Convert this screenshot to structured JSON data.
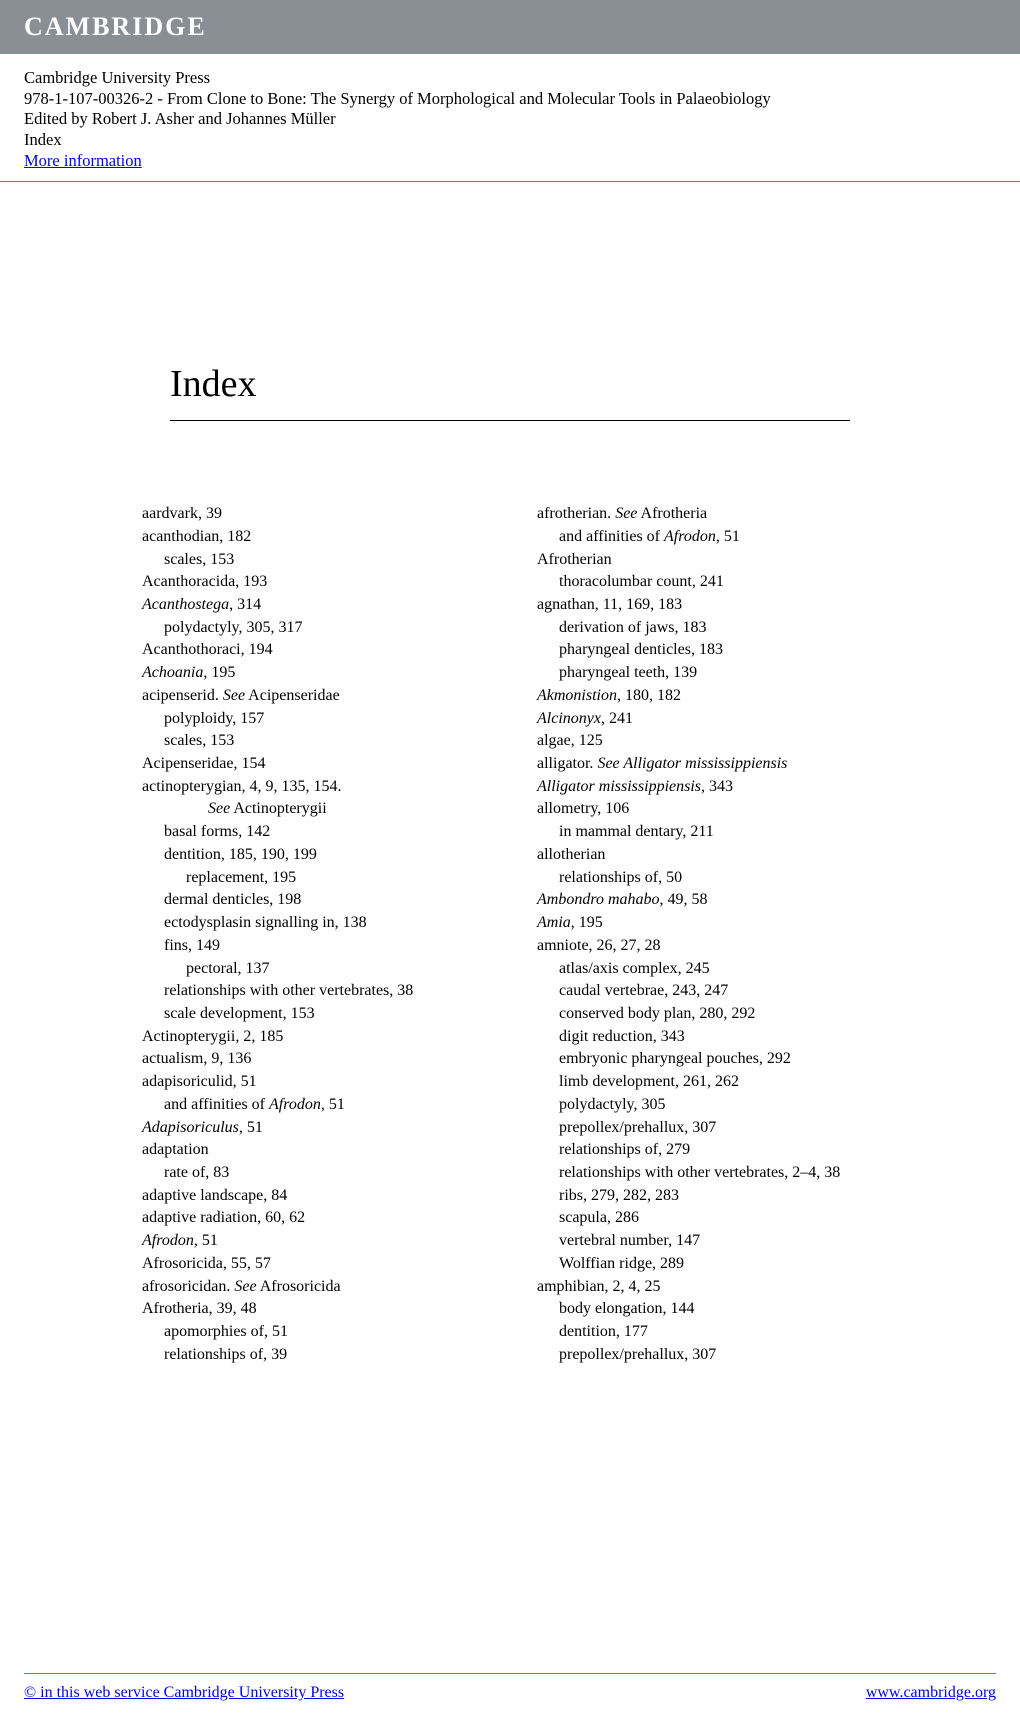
{
  "header": {
    "publisher_logo": "CAMBRIDGE"
  },
  "meta": {
    "line1": "Cambridge University Press",
    "line2": "978-1-107-00326-2 - From Clone to Bone: The Synergy of Morphological and Molecular Tools in Palaeobiology",
    "line3": "Edited by Robert J. Asher and Johannes Müller",
    "line4": "Index",
    "more_info": "More information"
  },
  "index_title": "Index",
  "left_column": [
    {
      "text": "aardvark, 39",
      "indent": 0
    },
    {
      "text": "acanthodian, 182",
      "indent": 0
    },
    {
      "text": "scales, 153",
      "indent": 1
    },
    {
      "text": "Acanthoracida, 193",
      "indent": 0
    },
    {
      "text": "Acanthostega",
      "after": ", 314",
      "indent": 0,
      "italic": true
    },
    {
      "text": "polydactyly, 305, 317",
      "indent": 1
    },
    {
      "text": "Acanthothoraci, 194",
      "indent": 0
    },
    {
      "text": "Achoania",
      "after": ", 195",
      "indent": 0,
      "italic": true
    },
    {
      "text": "acipenserid. ",
      "see": "See",
      "after": " Acipenseridae",
      "indent": 0
    },
    {
      "text": "polyploidy, 157",
      "indent": 1
    },
    {
      "text": "scales, 153",
      "indent": 1
    },
    {
      "text": "Acipenseridae, 154",
      "indent": 0
    },
    {
      "text": "actinopterygian, 4, 9, 135, 154.",
      "indent": 0
    },
    {
      "text": "",
      "see": "See",
      "after": " Actinopterygii",
      "indent": 3
    },
    {
      "text": "basal forms, 142",
      "indent": 1
    },
    {
      "text": "dentition, 185, 190, 199",
      "indent": 1
    },
    {
      "text": "replacement, 195",
      "indent": 2
    },
    {
      "text": "dermal denticles, 198",
      "indent": 1
    },
    {
      "text": "ectodysplasin signalling in, 138",
      "indent": 1
    },
    {
      "text": "fins, 149",
      "indent": 1
    },
    {
      "text": "pectoral, 137",
      "indent": 2
    },
    {
      "text": "relationships with other vertebrates, 38",
      "indent": 1
    },
    {
      "text": "scale development, 153",
      "indent": 1
    },
    {
      "text": "Actinopterygii, 2, 185",
      "indent": 0
    },
    {
      "text": "actualism, 9, 136",
      "indent": 0
    },
    {
      "text": "adapisoriculid, 51",
      "indent": 0
    },
    {
      "text": "and affinities of ",
      "italic_mid": "Afrodon",
      "after": ", 51",
      "indent": 1
    },
    {
      "text": "Adapisoriculus",
      "after": ", 51",
      "indent": 0,
      "italic": true
    },
    {
      "text": "adaptation",
      "indent": 0
    },
    {
      "text": "rate of, 83",
      "indent": 1
    },
    {
      "text": "adaptive landscape, 84",
      "indent": 0
    },
    {
      "text": "adaptive radiation, 60, 62",
      "indent": 0
    },
    {
      "text": "Afrodon",
      "after": ", 51",
      "indent": 0,
      "italic": true
    },
    {
      "text": "Afrosoricida, 55, 57",
      "indent": 0
    },
    {
      "text": "afrosoricidan. ",
      "see": "See",
      "after": " Afrosoricida",
      "indent": 0
    },
    {
      "text": "Afrotheria, 39, 48",
      "indent": 0
    },
    {
      "text": "apomorphies of, 51",
      "indent": 1
    },
    {
      "text": "relationships of, 39",
      "indent": 1
    }
  ],
  "right_column": [
    {
      "text": "afrotherian. ",
      "see": "See",
      "after": " Afrotheria",
      "indent": 0
    },
    {
      "text": "and affinities of ",
      "italic_mid": "Afrodon",
      "after": ", 51",
      "indent": 1
    },
    {
      "text": "Afrotherian",
      "indent": 0
    },
    {
      "text": "thoracolumbar count, 241",
      "indent": 1
    },
    {
      "text": "agnathan, 11, 169, 183",
      "indent": 0
    },
    {
      "text": "derivation of jaws, 183",
      "indent": 1
    },
    {
      "text": "pharyngeal denticles, 183",
      "indent": 1
    },
    {
      "text": "pharyngeal teeth, 139",
      "indent": 1
    },
    {
      "text": "Akmonistion",
      "after": ", 180, 182",
      "indent": 0,
      "italic": true
    },
    {
      "text": "Alcinonyx",
      "after": ", 241",
      "indent": 0,
      "italic": true
    },
    {
      "text": "algae, 125",
      "indent": 0
    },
    {
      "text": "alligator. ",
      "see": "See ",
      "italic_after": "Alligator mississippiensis",
      "indent": 0
    },
    {
      "text": "Alligator mississippiensis",
      "after": ", 343",
      "indent": 0,
      "italic": true
    },
    {
      "text": "allometry, 106",
      "indent": 0
    },
    {
      "text": "in mammal dentary, 211",
      "indent": 1
    },
    {
      "text": "allotherian",
      "indent": 0
    },
    {
      "text": "relationships of, 50",
      "indent": 1
    },
    {
      "text": "Ambondro mahabo",
      "after": ", 49, 58",
      "indent": 0,
      "italic": true
    },
    {
      "text": "Amia",
      "after": ", 195",
      "indent": 0,
      "italic": true
    },
    {
      "text": "amniote, 26, 27, 28",
      "indent": 0
    },
    {
      "text": "atlas/axis complex, 245",
      "indent": 1
    },
    {
      "text": "caudal vertebrae, 243, 247",
      "indent": 1
    },
    {
      "text": "conserved body plan, 280, 292",
      "indent": 1
    },
    {
      "text": "digit reduction, 343",
      "indent": 1
    },
    {
      "text": "embryonic pharyngeal pouches, 292",
      "indent": 1
    },
    {
      "text": "limb development, 261, 262",
      "indent": 1
    },
    {
      "text": "polydactyly, 305",
      "indent": 1
    },
    {
      "text": "prepollex/prehallux, 307",
      "indent": 1
    },
    {
      "text": "relationships of, 279",
      "indent": 1
    },
    {
      "text": "relationships with other vertebrates, 2–4, 38",
      "indent": 1
    },
    {
      "text": "ribs, 279, 282, 283",
      "indent": 1
    },
    {
      "text": "scapula, 286",
      "indent": 1
    },
    {
      "text": "vertebral number, 147",
      "indent": 1
    },
    {
      "text": "Wolffian ridge, 289",
      "indent": 1
    },
    {
      "text": "amphibian, 2, 4, 25",
      "indent": 0
    },
    {
      "text": "body elongation, 144",
      "indent": 1
    },
    {
      "text": "dentition, 177",
      "indent": 1
    },
    {
      "text": "prepollex/prehallux, 307",
      "indent": 1
    }
  ],
  "footer": {
    "left": "© in this web service Cambridge University Press",
    "right": "www.cambridge.org"
  },
  "colors": {
    "header_bg": "#8a8f96",
    "header_text": "#ffffff",
    "link": "#0000ee",
    "rule": "#5b7fc9",
    "text": "#000000"
  }
}
